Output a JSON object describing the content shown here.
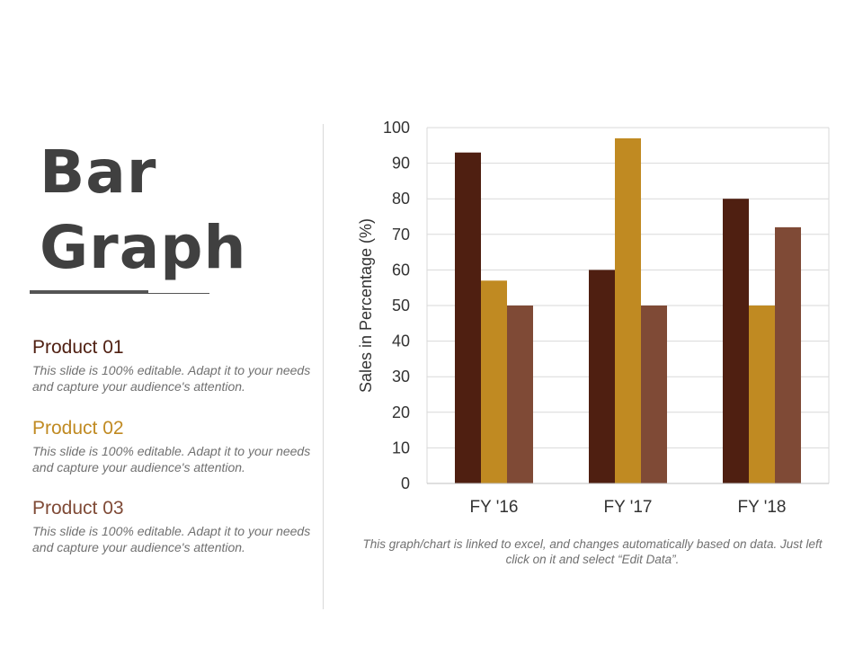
{
  "slide": {
    "title_line1": "Bar",
    "title_line2": "Graph",
    "note": "This graph/chart is linked to excel, and changes automatically based on data. Just left click on it and select “Edit Data”."
  },
  "products": [
    {
      "name": "Product 01",
      "description": "This slide is 100% editable. Adapt it to your needs and capture your audience's attention.",
      "color": "#4f1f11"
    },
    {
      "name": "Product 02",
      "description": "This slide is 100% editable. Adapt it to your needs and capture your audience's attention.",
      "color": "#c08a22"
    },
    {
      "name": "Product 03",
      "description": "This slide is 100% editable. Adapt it to your needs and capture your audience's attention.",
      "color": "#7f4a36"
    }
  ],
  "chart_data": {
    "type": "bar",
    "categories": [
      "FY '16",
      "FY '17",
      "FY '18"
    ],
    "series": [
      {
        "values": [
          93,
          60,
          80
        ],
        "color": "#4f1f11"
      },
      {
        "values": [
          57,
          97,
          50
        ],
        "color": "#c08a22"
      },
      {
        "values": [
          50,
          50,
          72
        ],
        "color": "#7f4a36"
      }
    ],
    "ylabel": "Sales in Percentage (%)",
    "xlabel": "",
    "ylim": [
      0,
      100
    ],
    "yticks": [
      0,
      10,
      20,
      30,
      40,
      50,
      60,
      70,
      80,
      90,
      100
    ],
    "grid": true,
    "legend": "none"
  }
}
